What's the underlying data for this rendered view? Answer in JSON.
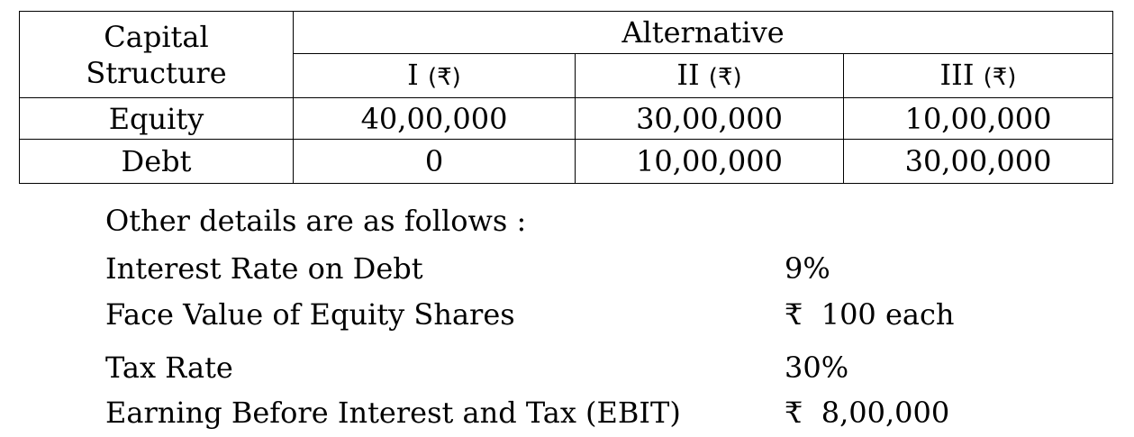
{
  "table": {
    "stub_header_line1": "Capital",
    "stub_header_line2": "Structure",
    "group_header": "Alternative",
    "columns": [
      {
        "numeral": "I",
        "currency": "(₹)"
      },
      {
        "numeral": "II",
        "currency": "(₹)"
      },
      {
        "numeral": "III",
        "currency": "(₹)"
      }
    ],
    "rows": [
      {
        "label": "Equity",
        "values": [
          "40,00,000",
          "30,00,000",
          "10,00,000"
        ]
      },
      {
        "label": "Debt",
        "values": [
          "0",
          "10,00,000",
          "30,00,000"
        ]
      }
    ]
  },
  "details": {
    "heading": "Other details are as follows :",
    "items": [
      {
        "label": "Interest Rate on Debt",
        "value": "9%"
      },
      {
        "label": "Face Value of Equity Shares",
        "value": "₹  100 each"
      },
      {
        "label": "Tax Rate",
        "value": "30%"
      },
      {
        "label": "Earning Before Interest and Tax (EBIT)",
        "value": "₹  8,00,000"
      }
    ]
  }
}
